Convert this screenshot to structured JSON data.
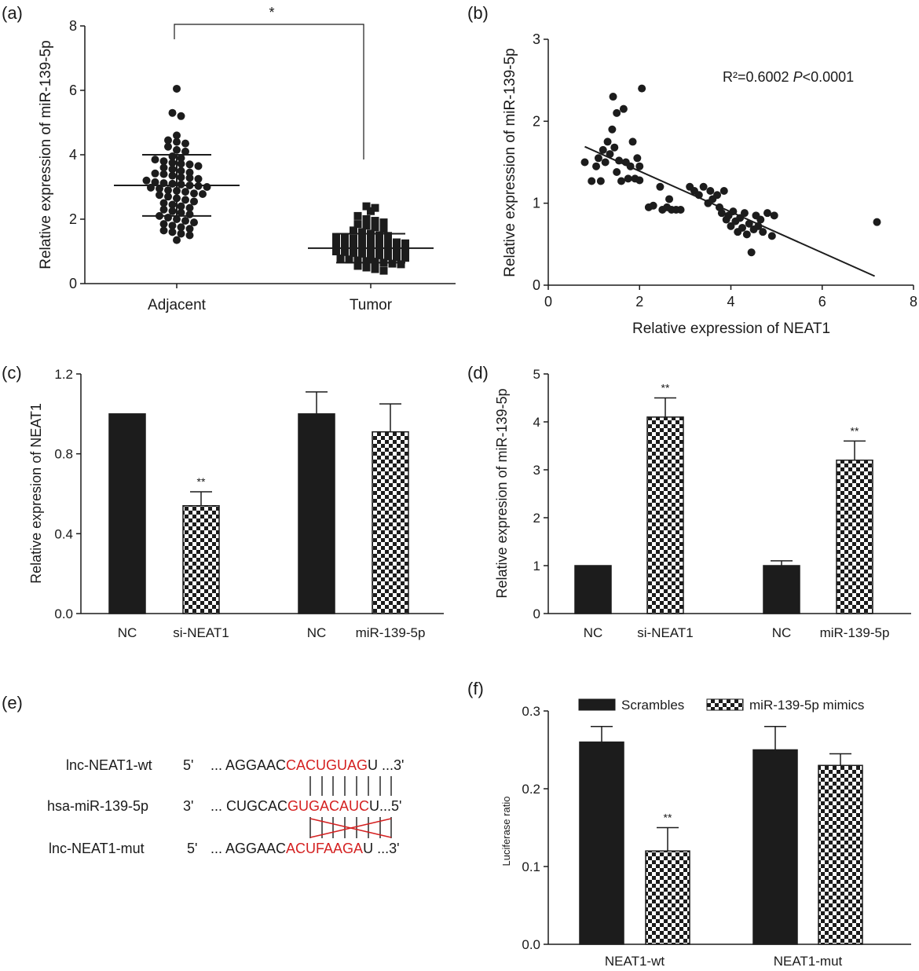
{
  "chart_data": [
    {
      "panel": "(a)",
      "type": "scatter",
      "ylabel": "Relative expression of miR-139-5p",
      "categories": [
        "Adjacent",
        "Tumor"
      ],
      "ylim": [
        0,
        8
      ],
      "yticks": [
        "0",
        "2",
        "4",
        "6",
        "8"
      ],
      "significance": "*",
      "series": [
        {
          "category": "Adjacent",
          "marker": "circle",
          "mean": 3.05,
          "sd_low": 2.1,
          "sd_high": 4.0,
          "values": [
            6.05,
            5.3,
            5.2,
            4.6,
            4.45,
            4.4,
            4.35,
            4.25,
            4.15,
            4.1,
            3.95,
            3.9,
            3.85,
            3.8,
            3.75,
            3.72,
            3.7,
            3.65,
            3.6,
            3.55,
            3.5,
            3.45,
            3.42,
            3.4,
            3.35,
            3.3,
            3.28,
            3.25,
            3.2,
            3.15,
            3.12,
            3.1,
            3.08,
            3.05,
            3.03,
            3.0,
            2.98,
            2.95,
            2.9,
            2.88,
            2.85,
            2.8,
            2.78,
            2.75,
            2.7,
            2.65,
            2.6,
            2.55,
            2.5,
            2.45,
            2.4,
            2.35,
            2.3,
            2.25,
            2.2,
            2.15,
            2.1,
            2.05,
            2.0,
            1.95,
            1.9,
            1.85,
            1.8,
            1.75,
            1.7,
            1.65,
            1.6,
            1.55,
            1.5,
            1.35
          ]
        },
        {
          "category": "Tumor",
          "marker": "square",
          "mean": 1.1,
          "sd_low": 0.65,
          "sd_high": 1.55,
          "values": [
            2.4,
            2.35,
            2.25,
            2.1,
            2.0,
            1.95,
            1.9,
            1.85,
            1.8,
            1.75,
            1.7,
            1.65,
            1.6,
            1.55,
            1.5,
            1.48,
            1.45,
            1.42,
            1.4,
            1.38,
            1.35,
            1.32,
            1.3,
            1.28,
            1.25,
            1.22,
            1.2,
            1.18,
            1.15,
            1.13,
            1.1,
            1.08,
            1.05,
            1.03,
            1.0,
            0.98,
            0.95,
            0.93,
            0.9,
            0.88,
            0.85,
            0.82,
            0.8,
            0.78,
            0.75,
            0.72,
            0.7,
            0.68,
            0.65,
            0.62,
            0.6,
            0.55,
            0.5,
            0.45,
            0.4
          ]
        }
      ]
    },
    {
      "panel": "(b)",
      "type": "scatter",
      "xlabel": "Relative expression of NEAT1",
      "ylabel": "Relative expression of miR-139-5p",
      "xlim": [
        0,
        8
      ],
      "ylim": [
        0,
        3
      ],
      "xticks": [
        "0",
        "2",
        "4",
        "6",
        "8"
      ],
      "yticks": [
        "0",
        "1",
        "2",
        "3"
      ],
      "annotation": {
        "r2": "R²=0.6002",
        "p_label": "P",
        "p_value": "<0.0001"
      },
      "regression": {
        "x": [
          0.8,
          7.15
        ],
        "y": [
          1.69,
          0.11
        ]
      },
      "points": [
        [
          0.8,
          1.5
        ],
        [
          0.95,
          1.27
        ],
        [
          1.05,
          1.45
        ],
        [
          1.1,
          1.55
        ],
        [
          1.15,
          1.27
        ],
        [
          1.2,
          1.65
        ],
        [
          1.25,
          1.5
        ],
        [
          1.3,
          1.75
        ],
        [
          1.35,
          1.6
        ],
        [
          1.4,
          1.9
        ],
        [
          1.42,
          2.3
        ],
        [
          1.45,
          1.68
        ],
        [
          1.5,
          1.38
        ],
        [
          1.5,
          2.1
        ],
        [
          1.55,
          1.52
        ],
        [
          1.6,
          1.27
        ],
        [
          1.65,
          2.15
        ],
        [
          1.7,
          1.5
        ],
        [
          1.75,
          1.3
        ],
        [
          1.8,
          1.45
        ],
        [
          1.85,
          1.75
        ],
        [
          1.9,
          1.3
        ],
        [
          1.95,
          1.55
        ],
        [
          2.0,
          1.45
        ],
        [
          2.0,
          1.28
        ],
        [
          2.05,
          2.4
        ],
        [
          2.2,
          0.95
        ],
        [
          2.3,
          0.97
        ],
        [
          2.45,
          1.2
        ],
        [
          2.5,
          0.92
        ],
        [
          2.6,
          0.95
        ],
        [
          2.65,
          1.05
        ],
        [
          2.7,
          0.92
        ],
        [
          2.8,
          0.92
        ],
        [
          2.9,
          0.92
        ],
        [
          3.1,
          1.2
        ],
        [
          3.2,
          1.15
        ],
        [
          3.3,
          1.1
        ],
        [
          3.4,
          1.2
        ],
        [
          3.5,
          1.0
        ],
        [
          3.55,
          1.15
        ],
        [
          3.6,
          1.05
        ],
        [
          3.7,
          1.1
        ],
        [
          3.75,
          0.95
        ],
        [
          3.8,
          0.88
        ],
        [
          3.85,
          1.15
        ],
        [
          3.9,
          0.8
        ],
        [
          3.95,
          0.85
        ],
        [
          4.0,
          0.72
        ],
        [
          4.05,
          0.9
        ],
        [
          4.1,
          0.78
        ],
        [
          4.15,
          0.65
        ],
        [
          4.2,
          0.82
        ],
        [
          4.25,
          0.7
        ],
        [
          4.3,
          0.88
        ],
        [
          4.35,
          0.62
        ],
        [
          4.4,
          0.75
        ],
        [
          4.45,
          0.4
        ],
        [
          4.5,
          0.68
        ],
        [
          4.55,
          0.85
        ],
        [
          4.6,
          0.72
        ],
        [
          4.65,
          0.8
        ],
        [
          4.7,
          0.65
        ],
        [
          4.8,
          0.88
        ],
        [
          4.9,
          0.6
        ],
        [
          4.95,
          0.85
        ],
        [
          7.2,
          0.77
        ]
      ]
    },
    {
      "panel": "(c)",
      "type": "bar",
      "ylabel": "Relative expresion of NEAT1",
      "ylim": [
        0,
        1.2
      ],
      "yticks": [
        "0.0",
        "0.4",
        "0.8",
        "1.2"
      ],
      "categories": [
        "NC",
        "si-NEAT1",
        "NC",
        "miR-139-5p"
      ],
      "values": [
        1.0,
        0.54,
        1.0,
        0.91
      ],
      "errors": [
        0,
        0.07,
        0.11,
        0.14
      ],
      "fills": [
        "solid",
        "checker",
        "solid",
        "checker"
      ],
      "significance": [
        "",
        "**",
        "",
        ""
      ]
    },
    {
      "panel": "(d)",
      "type": "bar",
      "ylabel": "Relative expresion of miR-139-5p",
      "ylim": [
        0,
        5
      ],
      "yticks": [
        "0",
        "1",
        "2",
        "3",
        "4",
        "5"
      ],
      "categories": [
        "NC",
        "si-NEAT1",
        "NC",
        "miR-139-5p"
      ],
      "values": [
        1.0,
        4.1,
        1.0,
        3.2
      ],
      "errors": [
        0,
        0.4,
        0.1,
        0.4
      ],
      "fills": [
        "solid",
        "checker",
        "solid",
        "checker"
      ],
      "significance": [
        "",
        "**",
        "",
        "**"
      ]
    },
    {
      "panel": "(f)",
      "type": "bar",
      "ylabel": "Luciferase ratio",
      "ylim": [
        0,
        0.3
      ],
      "yticks": [
        "0.0",
        "0.1",
        "0.2",
        "0.3"
      ],
      "categories": [
        "NEAT1-wt",
        "NEAT1-mut"
      ],
      "legend_position": "top",
      "series": [
        {
          "name": "Scrambles",
          "fill": "solid",
          "values": [
            0.26,
            0.25
          ],
          "errors": [
            0.02,
            0.03
          ],
          "significance": [
            "",
            ""
          ]
        },
        {
          "name": "miR-139-5p mimics",
          "fill": "checker",
          "values": [
            0.12,
            0.23
          ],
          "errors": [
            0.03,
            0.015
          ],
          "significance": [
            "**",
            ""
          ]
        }
      ]
    }
  ],
  "panel_e": {
    "label": "(e)",
    "rows": [
      {
        "name": "lnc-NEAT1-wt",
        "end5": "5'",
        "pre": "... AGGAAC",
        "seed": "CACUGUAG",
        "post": "U ...3'"
      },
      {
        "name": "hsa-miR-139-5p",
        "end5": "3'",
        "pre": "... CUGCAC",
        "seed": "GUGACAUC",
        "post": "U...5'"
      },
      {
        "name": "lnc-NEAT1-mut",
        "end5": "5'",
        "pre": "... AGGAAC",
        "seed": "ACUFAAGA",
        "post": "U ...3'"
      }
    ]
  },
  "colors": {
    "bar": "#1c1c1c",
    "mismatch": "#d42020",
    "text": "#1a1a1a"
  }
}
